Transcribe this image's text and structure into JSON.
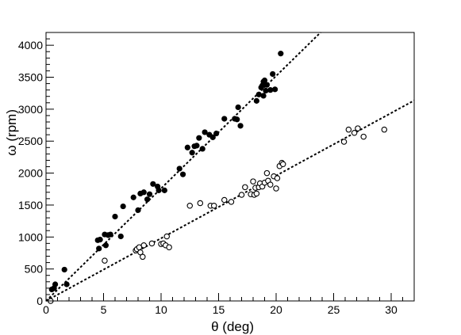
{
  "chart_data": {
    "type": "scatter",
    "xlabel": "θ (deg)",
    "ylabel": "ω (rpm)",
    "xlim": [
      0,
      32
    ],
    "ylim": [
      0,
      4200
    ],
    "x_ticks": [
      0,
      5,
      10,
      15,
      20,
      25,
      30
    ],
    "y_ticks": [
      0,
      500,
      1000,
      1500,
      2000,
      2500,
      3000,
      3500,
      4000
    ],
    "x_minor_step": 1,
    "y_minor_step": 100,
    "legend": "none",
    "grid": false,
    "series": [
      {
        "marker": "filled-circle",
        "color": "#000000",
        "points": [
          [
            0.5,
            180
          ],
          [
            0.7,
            200
          ],
          [
            0.8,
            260
          ],
          [
            1.6,
            490
          ],
          [
            1.8,
            260
          ],
          [
            4.5,
            950
          ],
          [
            4.6,
            820
          ],
          [
            4.7,
            960
          ],
          [
            5.1,
            1040
          ],
          [
            5.2,
            870
          ],
          [
            5.4,
            1030
          ],
          [
            5.6,
            1040
          ],
          [
            6.0,
            1320
          ],
          [
            6.5,
            1010
          ],
          [
            6.7,
            1480
          ],
          [
            7.6,
            1620
          ],
          [
            8.0,
            1420
          ],
          [
            8.2,
            1680
          ],
          [
            8.5,
            1700
          ],
          [
            8.8,
            1590
          ],
          [
            9.0,
            1670
          ],
          [
            9.3,
            1830
          ],
          [
            9.7,
            1790
          ],
          [
            9.8,
            1730
          ],
          [
            10.3,
            1730
          ],
          [
            11.6,
            2070
          ],
          [
            11.9,
            1980
          ],
          [
            12.3,
            2400
          ],
          [
            12.7,
            2320
          ],
          [
            12.9,
            2420
          ],
          [
            13.1,
            2430
          ],
          [
            13.3,
            2550
          ],
          [
            13.6,
            2380
          ],
          [
            13.8,
            2640
          ],
          [
            14.2,
            2600
          ],
          [
            14.5,
            2560
          ],
          [
            14.8,
            2620
          ],
          [
            15.5,
            2850
          ],
          [
            16.4,
            2850
          ],
          [
            16.6,
            2840
          ],
          [
            16.7,
            3030
          ],
          [
            16.9,
            2740
          ],
          [
            18.3,
            3130
          ],
          [
            18.5,
            3230
          ],
          [
            18.7,
            3340
          ],
          [
            18.8,
            3370
          ],
          [
            18.9,
            3430
          ],
          [
            19.0,
            3450
          ],
          [
            19.2,
            3380
          ],
          [
            19.5,
            3300
          ],
          [
            19.7,
            3550
          ],
          [
            19.9,
            3310
          ],
          [
            20.4,
            3870
          ],
          [
            19.1,
            3290
          ],
          [
            18.9,
            3210
          ]
        ],
        "fit": {
          "x0": 0,
          "y0": 0,
          "slope": 176
        }
      },
      {
        "marker": "open-circle",
        "color": "#000000",
        "points": [
          [
            0.4,
            0
          ],
          [
            5.1,
            630
          ],
          [
            7.8,
            790
          ],
          [
            7.9,
            810
          ],
          [
            8.1,
            840
          ],
          [
            8.2,
            760
          ],
          [
            8.4,
            690
          ],
          [
            8.5,
            870
          ],
          [
            9.2,
            900
          ],
          [
            10.0,
            890
          ],
          [
            10.2,
            900
          ],
          [
            10.4,
            870
          ],
          [
            10.5,
            1010
          ],
          [
            10.7,
            840
          ],
          [
            12.5,
            1490
          ],
          [
            13.4,
            1530
          ],
          [
            14.3,
            1490
          ],
          [
            14.6,
            1490
          ],
          [
            15.5,
            1580
          ],
          [
            16.1,
            1550
          ],
          [
            17.0,
            1660
          ],
          [
            17.3,
            1780
          ],
          [
            17.8,
            1670
          ],
          [
            18.0,
            1870
          ],
          [
            18.1,
            1660
          ],
          [
            18.2,
            1770
          ],
          [
            18.3,
            1680
          ],
          [
            18.5,
            1780
          ],
          [
            18.6,
            1840
          ],
          [
            18.8,
            1790
          ],
          [
            19.0,
            1850
          ],
          [
            19.2,
            2000
          ],
          [
            19.3,
            1880
          ],
          [
            19.5,
            1820
          ],
          [
            19.8,
            1950
          ],
          [
            20.0,
            1760
          ],
          [
            20.1,
            1920
          ],
          [
            20.3,
            2110
          ],
          [
            20.5,
            2160
          ],
          [
            20.6,
            2140
          ],
          [
            25.9,
            2490
          ],
          [
            26.3,
            2680
          ],
          [
            26.8,
            2630
          ],
          [
            27.1,
            2700
          ],
          [
            27.6,
            2570
          ],
          [
            29.4,
            2680
          ]
        ],
        "fit": {
          "x0": 0,
          "y0": 0,
          "slope": 98
        }
      }
    ]
  }
}
